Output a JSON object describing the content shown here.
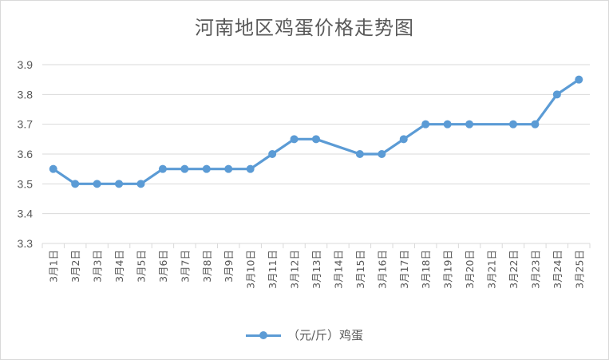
{
  "chart_data": {
    "type": "line",
    "title": "河南地区鸡蛋价格走势图",
    "xlabel": "",
    "ylabel": "",
    "ylim": [
      3.3,
      3.9
    ],
    "yticks": [
      "3.9",
      "3.8",
      "3.7",
      "3.6",
      "3.5",
      "3.4",
      "3.3"
    ],
    "grid": true,
    "legend_position": "bottom",
    "categories": [
      "3月1日",
      "3月2日",
      "3月3日",
      "3月4日",
      "3月5日",
      "3月6日",
      "3月7日",
      "3月8日",
      "3月9日",
      "3月10日",
      "3月11日",
      "3月12日",
      "3月13日",
      "3月14日",
      "3月15日",
      "3月16日",
      "3月17日",
      "3月18日",
      "3月19日",
      "3月20日",
      "3月21日",
      "3月22日",
      "3月23日",
      "3月24日",
      "3月25日"
    ],
    "series": [
      {
        "name": "（元/斤）鸡蛋",
        "color": "#5b9bd5",
        "values": [
          3.55,
          3.5,
          3.5,
          3.5,
          3.5,
          3.55,
          3.55,
          3.55,
          3.55,
          3.55,
          3.6,
          3.65,
          3.65,
          null,
          3.6,
          3.6,
          3.65,
          3.7,
          3.7,
          3.7,
          null,
          3.7,
          3.7,
          3.8,
          3.85
        ]
      }
    ]
  }
}
